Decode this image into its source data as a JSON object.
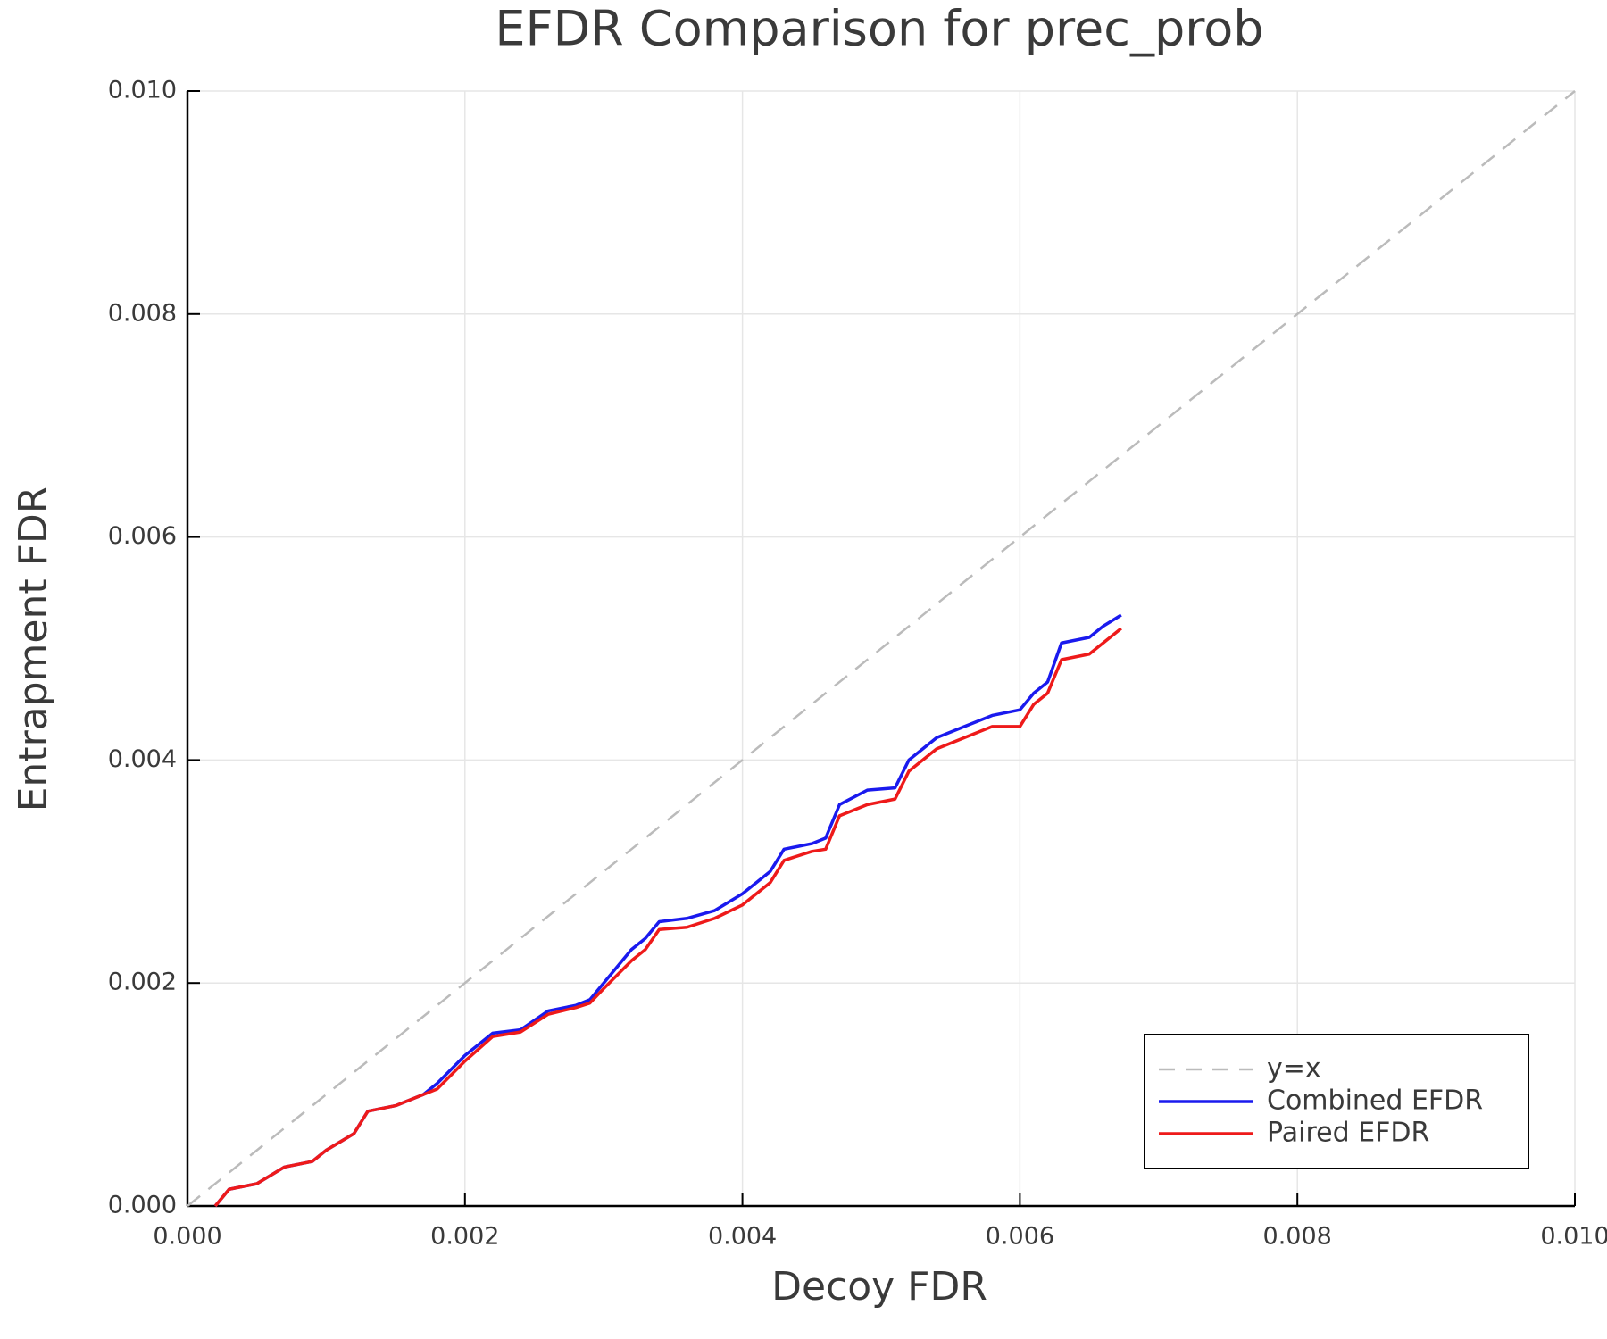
{
  "chart_data": {
    "type": "line",
    "title": "EFDR Comparison for prec_prob",
    "x_label": "Decoy FDR",
    "y_label": "Entrapment FDR",
    "xlim": [
      0,
      0.01
    ],
    "ylim": [
      0,
      0.01
    ],
    "xticks": [
      {
        "value": 0,
        "label": "0.000"
      },
      {
        "value": 0.002,
        "label": "0.002"
      },
      {
        "value": 0.004,
        "label": "0.004"
      },
      {
        "value": 0.006,
        "label": "0.006"
      },
      {
        "value": 0.008,
        "label": "0.008"
      },
      {
        "value": 0.01,
        "label": "0.010"
      }
    ],
    "yticks": [
      {
        "value": 0,
        "label": "0.000"
      },
      {
        "value": 0.002,
        "label": "0.002"
      },
      {
        "value": 0.004,
        "label": "0.004"
      },
      {
        "value": 0.006,
        "label": "0.006"
      },
      {
        "value": 0.008,
        "label": "0.008"
      },
      {
        "value": 0.01,
        "label": "0.010"
      }
    ],
    "grid": true,
    "legend": "bottom-right",
    "series": [
      {
        "name": "y=x",
        "color": "#bbbbbb",
        "dashed": true,
        "x": [
          0,
          0.01
        ],
        "values": [
          0,
          0.01
        ]
      },
      {
        "name": "Combined EFDR",
        "color": "#1a1aee",
        "dashed": false,
        "x": [
          0.0002,
          0.0003,
          0.0005,
          0.0007,
          0.0009,
          0.001,
          0.0012,
          0.0013,
          0.0015,
          0.0017,
          0.0018,
          0.002,
          0.0022,
          0.0024,
          0.0026,
          0.0028,
          0.0029,
          0.003,
          0.0032,
          0.0033,
          0.0034,
          0.0036,
          0.0038,
          0.004,
          0.0041,
          0.0042,
          0.0043,
          0.0045,
          0.0046,
          0.0047,
          0.0049,
          0.0051,
          0.0052,
          0.0053,
          0.0054,
          0.0056,
          0.0058,
          0.006,
          0.0061,
          0.0062,
          0.0063,
          0.0065,
          0.0066,
          0.00673
        ],
        "values": [
          0,
          0.00015,
          0.0002,
          0.00035,
          0.0004,
          0.0005,
          0.00065,
          0.00085,
          0.0009,
          0.001,
          0.0011,
          0.00135,
          0.00155,
          0.00158,
          0.00175,
          0.0018,
          0.00185,
          0.002,
          0.0023,
          0.0024,
          0.00255,
          0.00258,
          0.00265,
          0.0028,
          0.0029,
          0.003,
          0.0032,
          0.00325,
          0.0033,
          0.0036,
          0.00373,
          0.00375,
          0.004,
          0.0041,
          0.0042,
          0.0043,
          0.0044,
          0.00445,
          0.0046,
          0.0047,
          0.00505,
          0.0051,
          0.0052,
          0.0053
        ]
      },
      {
        "name": "Paired EFDR",
        "color": "#ee1a1a",
        "dashed": false,
        "x": [
          0.0002,
          0.0003,
          0.0005,
          0.0007,
          0.0009,
          0.001,
          0.0012,
          0.0013,
          0.0015,
          0.0017,
          0.0018,
          0.002,
          0.0022,
          0.0024,
          0.0026,
          0.0028,
          0.0029,
          0.003,
          0.0032,
          0.0033,
          0.0034,
          0.0036,
          0.0038,
          0.004,
          0.0041,
          0.0042,
          0.0043,
          0.0045,
          0.0046,
          0.0047,
          0.0049,
          0.0051,
          0.0052,
          0.0053,
          0.0054,
          0.0056,
          0.0058,
          0.006,
          0.0061,
          0.0062,
          0.0063,
          0.0065,
          0.0066,
          0.00673
        ],
        "values": [
          0,
          0.00015,
          0.0002,
          0.00035,
          0.0004,
          0.0005,
          0.00065,
          0.00085,
          0.0009,
          0.001,
          0.00105,
          0.0013,
          0.00152,
          0.00156,
          0.00172,
          0.00178,
          0.00182,
          0.00195,
          0.0022,
          0.0023,
          0.00248,
          0.0025,
          0.00258,
          0.0027,
          0.0028,
          0.0029,
          0.0031,
          0.00318,
          0.0032,
          0.0035,
          0.0036,
          0.00365,
          0.0039,
          0.004,
          0.0041,
          0.0042,
          0.0043,
          0.0043,
          0.0045,
          0.0046,
          0.0049,
          0.00495,
          0.00505,
          0.00518
        ]
      }
    ]
  }
}
